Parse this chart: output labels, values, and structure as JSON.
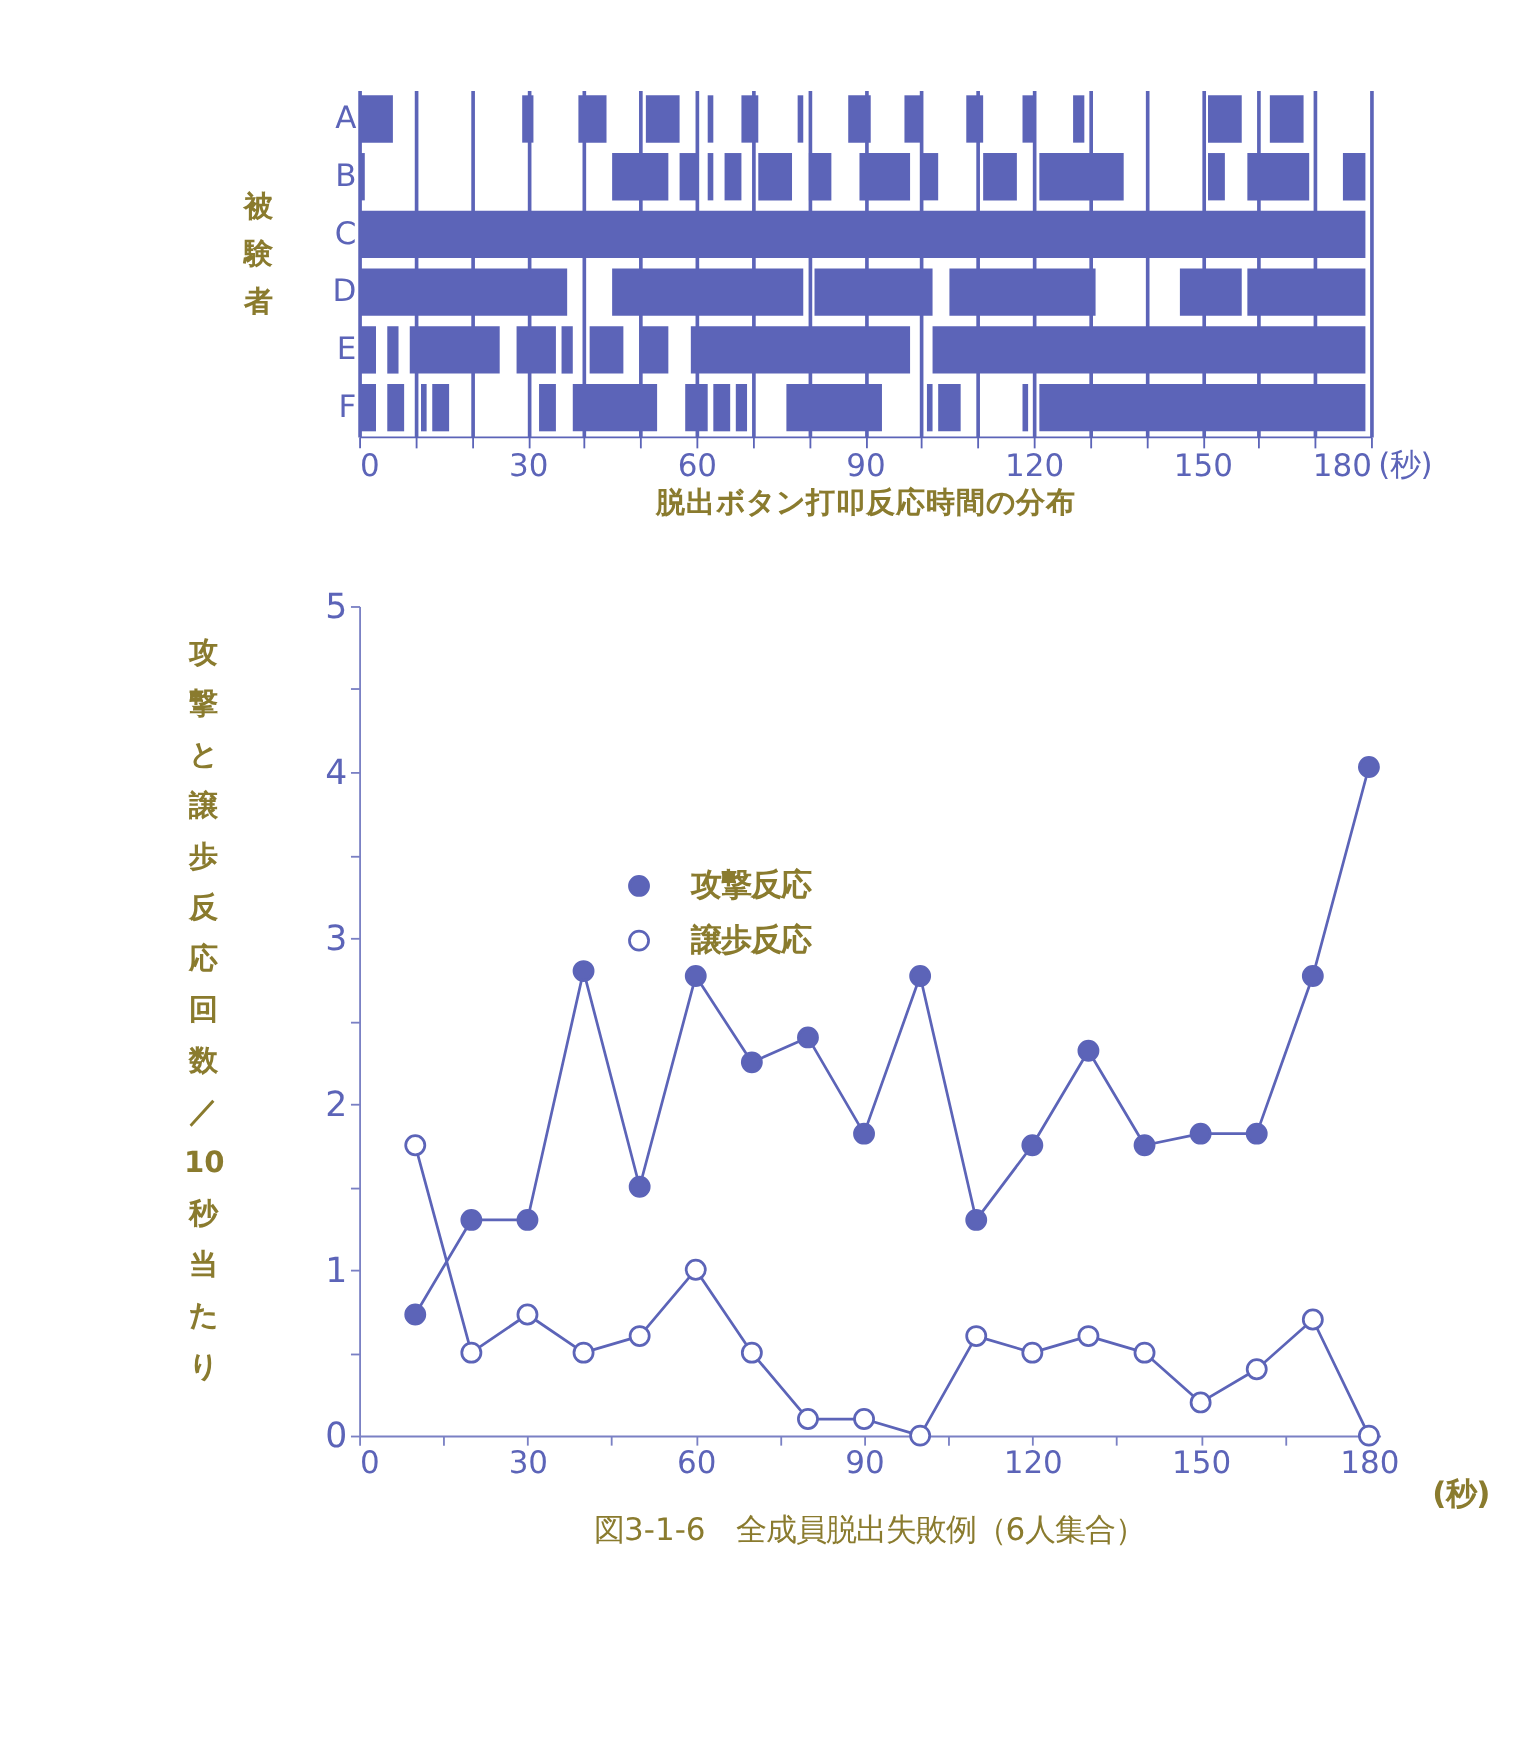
{
  "chart_data": [
    {
      "type": "bar",
      "orientation": "horizontal",
      "xlabel": "脱出ボタン打叩反応時間の分布",
      "ylabel": "被験者",
      "annotations": [
        "(秒)"
      ],
      "categories": [
        "A",
        "B",
        "C",
        "D",
        "E",
        "F"
      ],
      "xlim": [
        0,
        180
      ],
      "xticks": [
        0,
        {
          "value": 10,
          "label": null
        },
        {
          "value": 20,
          "label": null
        },
        30,
        {
          "value": 40,
          "label": null
        },
        {
          "value": 50,
          "label": null
        },
        60,
        {
          "value": 70,
          "label": null
        },
        {
          "value": 80,
          "label": null
        },
        90,
        {
          "value": 100,
          "label": null
        },
        {
          "value": 110,
          "label": null
        },
        120,
        {
          "value": 130,
          "label": null
        },
        {
          "value": 140,
          "label": null
        },
        150,
        {
          "value": 160,
          "label": null
        },
        {
          "value": 170,
          "label": null
        },
        180
      ],
      "grid": true,
      "series": [
        {
          "color": "#5c64b8",
          "base": [
            0,
            0,
            0,
            0,
            0,
            0
          ],
          "values": [
            6,
            1,
            179,
            37,
            3,
            3
          ]
        },
        {
          "color": "#5c64b8",
          "base": [
            29,
            45,
            null,
            45,
            5,
            5
          ],
          "values": [
            2,
            10,
            null,
            34,
            2,
            3
          ]
        },
        {
          "color": "#5c64b8",
          "base": [
            39,
            57,
            null,
            81,
            9,
            11
          ],
          "values": [
            5,
            3,
            null,
            21,
            16,
            1
          ]
        },
        {
          "color": "#5c64b8",
          "base": [
            51,
            62,
            null,
            105,
            28,
            13
          ],
          "values": [
            6,
            1,
            null,
            26,
            7,
            3
          ]
        },
        {
          "color": "#5c64b8",
          "base": [
            62,
            65,
            null,
            146,
            36,
            32
          ],
          "values": [
            1,
            3,
            null,
            11,
            2,
            3
          ]
        },
        {
          "color": "#5c64b8",
          "base": [
            68,
            71,
            null,
            158,
            41,
            38
          ],
          "values": [
            3,
            6,
            null,
            21,
            6,
            15
          ]
        },
        {
          "color": "#5c64b8",
          "base": [
            78,
            80,
            null,
            null,
            50,
            58
          ],
          "values": [
            1,
            4,
            null,
            null,
            5,
            4
          ]
        },
        {
          "color": "#5c64b8",
          "base": [
            87,
            89,
            null,
            null,
            59,
            63
          ],
          "values": [
            4,
            9,
            null,
            null,
            39,
            3
          ]
        },
        {
          "color": "#5c64b8",
          "base": [
            97,
            100,
            null,
            null,
            102,
            67
          ],
          "values": [
            3,
            3,
            null,
            null,
            77,
            2
          ]
        },
        {
          "color": "#5c64b8",
          "base": [
            108,
            111,
            null,
            null,
            null,
            76
          ],
          "values": [
            3,
            6,
            null,
            null,
            null,
            17
          ]
        },
        {
          "color": "#5c64b8",
          "base": [
            118,
            121,
            null,
            null,
            null,
            101
          ],
          "values": [
            2,
            15,
            null,
            null,
            null,
            1
          ]
        },
        {
          "color": "#5c64b8",
          "base": [
            127,
            151,
            null,
            null,
            null,
            103
          ],
          "values": [
            2,
            3,
            null,
            null,
            null,
            4
          ]
        },
        {
          "color": "#5c64b8",
          "base": [
            151,
            158,
            null,
            null,
            null,
            118
          ],
          "values": [
            6,
            11,
            null,
            null,
            null,
            1
          ]
        },
        {
          "color": "#5c64b8",
          "base": [
            162,
            175,
            null,
            null,
            null,
            121
          ],
          "values": [
            6,
            4,
            null,
            null,
            null,
            58
          ]
        }
      ]
    },
    {
      "type": "line",
      "xlabel": "(秒)",
      "ylabel": "攻撃と譲歩反応回数／10秒当たり",
      "annotations": [
        "図3-1-6　全成員脱出失敗例（6人集合）"
      ],
      "x": [
        10,
        20,
        30,
        40,
        50,
        60,
        70,
        80,
        90,
        100,
        110,
        120,
        130,
        140,
        150,
        160,
        170,
        180
      ],
      "xlim": [
        0,
        182
      ],
      "xticks": [
        0,
        {
          "value": 15,
          "label": null
        },
        30,
        {
          "value": 45,
          "label": null
        },
        60,
        {
          "value": 75,
          "label": null
        },
        90,
        {
          "value": 105,
          "label": null
        },
        120,
        {
          "value": 135,
          "label": null
        },
        150,
        {
          "value": 165,
          "label": null
        },
        180
      ],
      "ylim": [
        0,
        5
      ],
      "yticks": [
        0,
        {
          "value": 0.5,
          "label": null
        },
        1,
        {
          "value": 1.5,
          "label": null
        },
        2,
        {
          "value": 2.5,
          "label": null
        },
        3,
        {
          "value": 3.5,
          "label": null
        },
        4,
        {
          "value": 4.5,
          "label": null
        },
        5
      ],
      "legend": "top left",
      "marker": "circle",
      "line_style": "solid",
      "series": [
        {
          "name": "攻撃反応",
          "color": "#5c64b8",
          "values": [
            0.73,
            1.3,
            1.3,
            2.8,
            1.5,
            2.77,
            2.25,
            2.4,
            1.82,
            2.77,
            1.3,
            1.75,
            2.32,
            1.75,
            1.82,
            1.82,
            2.77,
            4.03
          ]
        },
        {
          "name": "譲歩反応",
          "color": "#5c64b8",
          "values": [
            1.75,
            0.5,
            0.73,
            0.5,
            0.6,
            1.0,
            0.5,
            0.1,
            0.1,
            0.0,
            0.6,
            0.5,
            0.6,
            0.5,
            0.2,
            0.4,
            0.7,
            0.0
          ]
        }
      ]
    }
  ]
}
